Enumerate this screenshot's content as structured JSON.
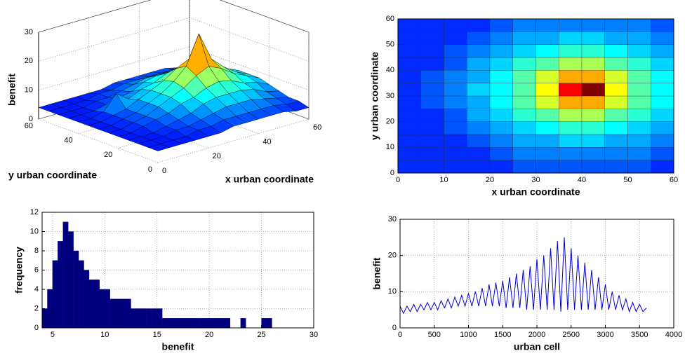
{
  "chart_data": [
    {
      "type": "surface3d",
      "xlabel": "x urban coordinate",
      "ylabel": "y urban coordinate",
      "zlabel": "benefit",
      "xlim": [
        0,
        60
      ],
      "ylim": [
        0,
        60
      ],
      "zlim": [
        0,
        30
      ],
      "xticks": [
        0,
        20,
        40,
        60
      ],
      "yticks": [
        0,
        20,
        40,
        60
      ],
      "zticks": [
        0,
        10,
        20,
        30
      ],
      "grid": true,
      "x": [
        0,
        5,
        10,
        15,
        20,
        25,
        30,
        35,
        40,
        45,
        50,
        55,
        60
      ],
      "y": [
        0,
        5,
        10,
        15,
        20,
        25,
        30,
        35,
        40,
        45,
        50,
        55,
        60
      ],
      "z": [
        [
          4,
          4,
          4,
          4,
          4,
          4,
          5,
          5,
          5,
          5,
          5,
          4,
          4
        ],
        [
          4,
          4,
          4,
          4,
          5,
          5,
          6,
          6,
          6,
          6,
          6,
          5,
          5
        ],
        [
          4,
          4,
          4,
          5,
          5,
          6,
          7,
          8,
          8,
          8,
          7,
          6,
          5
        ],
        [
          4,
          4,
          4,
          5,
          6,
          7,
          9,
          10,
          10,
          10,
          9,
          7,
          6
        ],
        [
          4,
          4,
          5,
          6,
          7,
          9,
          10,
          12,
          13,
          12,
          10,
          9,
          7
        ],
        [
          4,
          4,
          5,
          6,
          8,
          10,
          12,
          15,
          17,
          15,
          12,
          10,
          8
        ],
        [
          4,
          4,
          5,
          6,
          8,
          10,
          13,
          17,
          27,
          17,
          13,
          10,
          8
        ],
        [
          4,
          4,
          5,
          6,
          8,
          10,
          12,
          15,
          17,
          15,
          12,
          10,
          8
        ],
        [
          4,
          4,
          5,
          10,
          7,
          9,
          10,
          12,
          13,
          12,
          10,
          9,
          7
        ],
        [
          4,
          4,
          4,
          5,
          6,
          7,
          9,
          10,
          10,
          10,
          9,
          7,
          6
        ],
        [
          4,
          4,
          4,
          5,
          5,
          6,
          7,
          8,
          8,
          8,
          7,
          6,
          5
        ],
        [
          4,
          4,
          4,
          4,
          5,
          5,
          6,
          6,
          6,
          6,
          6,
          5,
          5
        ],
        [
          4,
          4,
          4,
          4,
          4,
          4,
          5,
          5,
          5,
          5,
          5,
          4,
          4
        ]
      ]
    },
    {
      "type": "heatmap",
      "xlabel": "x urban coordinate",
      "ylabel": "y urban coordinate",
      "xlim": [
        0,
        60
      ],
      "ylim": [
        0,
        60
      ],
      "xticks": [
        0,
        10,
        20,
        30,
        40,
        50,
        60
      ],
      "yticks": [
        0,
        10,
        20,
        30,
        40,
        50,
        60
      ],
      "z": [
        [
          4,
          4,
          4,
          4,
          4,
          5,
          5,
          5,
          5,
          5,
          5,
          4
        ],
        [
          4,
          4,
          4,
          4,
          5,
          6,
          6,
          6,
          6,
          6,
          6,
          5
        ],
        [
          4,
          4,
          4,
          5,
          6,
          7,
          7,
          8,
          8,
          7,
          7,
          6
        ],
        [
          4,
          4,
          5,
          6,
          7,
          8,
          9,
          10,
          10,
          9,
          8,
          7
        ],
        [
          4,
          4,
          5,
          7,
          8,
          10,
          11,
          13,
          13,
          11,
          10,
          8
        ],
        [
          4,
          5,
          6,
          7,
          9,
          11,
          14,
          17,
          17,
          14,
          11,
          9
        ],
        [
          4,
          5,
          6,
          8,
          9,
          11,
          15,
          21,
          24,
          15,
          11,
          9
        ],
        [
          4,
          5,
          6,
          7,
          9,
          11,
          14,
          17,
          17,
          14,
          11,
          9
        ],
        [
          4,
          4,
          5,
          7,
          8,
          10,
          11,
          13,
          13,
          11,
          10,
          8
        ],
        [
          4,
          4,
          5,
          6,
          7,
          8,
          9,
          10,
          10,
          9,
          8,
          7
        ],
        [
          4,
          4,
          4,
          5,
          6,
          7,
          7,
          8,
          8,
          7,
          7,
          6
        ],
        [
          4,
          4,
          4,
          4,
          5,
          6,
          6,
          6,
          6,
          6,
          6,
          5
        ]
      ]
    },
    {
      "type": "histogram",
      "xlabel": "benefit",
      "ylabel": "frequency",
      "color": "#00007f",
      "grid": true,
      "xlim": [
        4,
        30
      ],
      "ylim": [
        0,
        12
      ],
      "xticks": [
        5,
        10,
        15,
        20,
        25,
        30
      ],
      "yticks": [
        0,
        2,
        4,
        6,
        8,
        10,
        12
      ],
      "bins": [
        4,
        4.5,
        5,
        5.5,
        6,
        6.5,
        7,
        7.5,
        8,
        8.5,
        9,
        9.5,
        10,
        10.5,
        11,
        11.5,
        12,
        12.5,
        13,
        13.5,
        14,
        14.5,
        15,
        15.5,
        16,
        16.5,
        17,
        17.5,
        18,
        18.5,
        19,
        19.5,
        20,
        20.5,
        21,
        21.5,
        22,
        22.5,
        23,
        23.5,
        24,
        24.5,
        25,
        25.5,
        26
      ],
      "values": [
        2,
        4,
        7,
        9,
        11,
        10,
        8,
        7,
        6,
        5,
        5,
        4,
        4,
        3,
        3,
        3,
        3,
        2,
        2,
        2,
        2,
        2,
        2,
        1,
        1,
        1,
        1,
        1,
        1,
        1,
        1,
        1,
        1,
        1,
        1,
        1,
        0,
        0,
        1,
        0,
        0,
        0,
        1,
        1
      ]
    },
    {
      "type": "line",
      "xlabel": "urban cell",
      "ylabel": "benefit",
      "color": "#0000cc",
      "grid": true,
      "xlim": [
        0,
        4000
      ],
      "ylim": [
        0,
        30
      ],
      "xticks": [
        0,
        500,
        1000,
        1500,
        2000,
        2500,
        3000,
        3500,
        4000
      ],
      "yticks": [
        0,
        10,
        20,
        30
      ],
      "x": [
        0,
        50,
        100,
        150,
        200,
        250,
        300,
        350,
        400,
        450,
        500,
        550,
        600,
        650,
        700,
        750,
        800,
        850,
        900,
        950,
        1000,
        1050,
        1100,
        1150,
        1200,
        1250,
        1300,
        1350,
        1400,
        1450,
        1500,
        1550,
        1600,
        1650,
        1700,
        1750,
        1800,
        1850,
        1900,
        1950,
        2000,
        2050,
        2100,
        2150,
        2200,
        2250,
        2300,
        2350,
        2400,
        2450,
        2500,
        2550,
        2600,
        2650,
        2700,
        2750,
        2800,
        2850,
        2900,
        2950,
        3000,
        3050,
        3100,
        3150,
        3200,
        3250,
        3300,
        3350,
        3400,
        3450,
        3500,
        3550,
        3600
      ],
      "values": [
        6,
        4,
        6,
        4.5,
        6.5,
        4.5,
        6.5,
        5,
        7,
        5,
        7,
        5,
        7.5,
        5.5,
        8,
        5.5,
        8.5,
        6,
        9,
        6,
        9.5,
        6,
        10,
        6,
        11,
        6,
        12,
        6,
        12.5,
        6,
        13,
        5.5,
        14,
        5.5,
        15,
        5.5,
        16,
        5,
        17,
        5,
        19,
        5,
        20,
        5,
        22,
        5,
        24,
        4.5,
        25,
        5,
        22,
        5,
        20,
        5,
        18,
        5,
        16,
        5,
        14,
        5,
        12,
        5,
        10,
        5,
        9,
        5,
        8,
        4.5,
        7,
        4.5,
        6.5,
        4.5,
        5.5
      ]
    }
  ]
}
